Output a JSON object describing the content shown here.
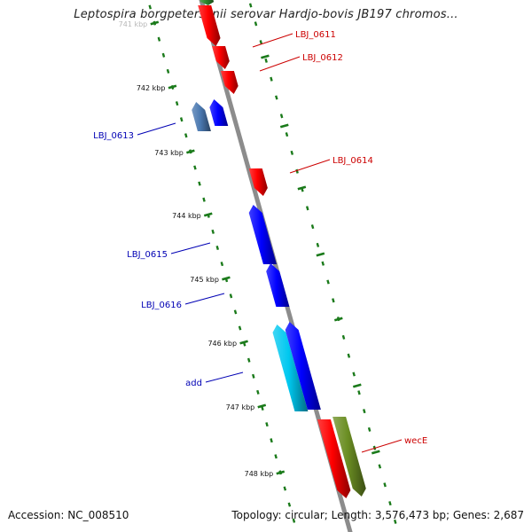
{
  "title": "Leptospira borgpetersenii serovar Hardjo-bovis JB197 chromos...",
  "footer": {
    "accession": "Accession: NC_008510",
    "summary": "Topology: circular; Length: 3,576,473 bp; Genes: 2,687"
  },
  "colors": {
    "backbone": "#8c8c8c",
    "tick": "#1a7a1a",
    "forward_label": "#cc0000",
    "reverse_label": "#0000b4",
    "forward_gene": "#ff0000",
    "reverse_gene": "#0000ff",
    "add_gene": "#00c8f0",
    "lbj0613_gene": "#4a78b0",
    "wecE_gene": "#6b8e23",
    "top_green_gene": "#2e8b2e"
  },
  "scale_labels": [
    "741 kbp",
    "742 kbp",
    "743 kbp",
    "744 kbp",
    "745 kbp",
    "746 kbp",
    "747 kbp",
    "748 kbp"
  ],
  "genes": {
    "forward": [
      {
        "label": "LBJ_0611",
        "color": "forward_gene"
      },
      {
        "label": "LBJ_0612",
        "color": "forward_gene"
      },
      {
        "label": "",
        "color": "forward_gene"
      },
      {
        "label": "LBJ_0614",
        "color": "forward_gene"
      },
      {
        "label": "",
        "color": "forward_gene"
      },
      {
        "label": "wecE",
        "color": "wecE_gene"
      },
      {
        "label": "",
        "color": "top_green_gene"
      }
    ],
    "reverse": [
      {
        "label": "LBJ_0613",
        "color": "lbj0613_gene"
      },
      {
        "label": "",
        "color": "reverse_gene"
      },
      {
        "label": "LBJ_0615",
        "color": "reverse_gene"
      },
      {
        "label": "LBJ_0616",
        "color": "reverse_gene"
      },
      {
        "label": "",
        "color": "reverse_gene"
      },
      {
        "label": "add",
        "color": "add_gene"
      }
    ]
  }
}
